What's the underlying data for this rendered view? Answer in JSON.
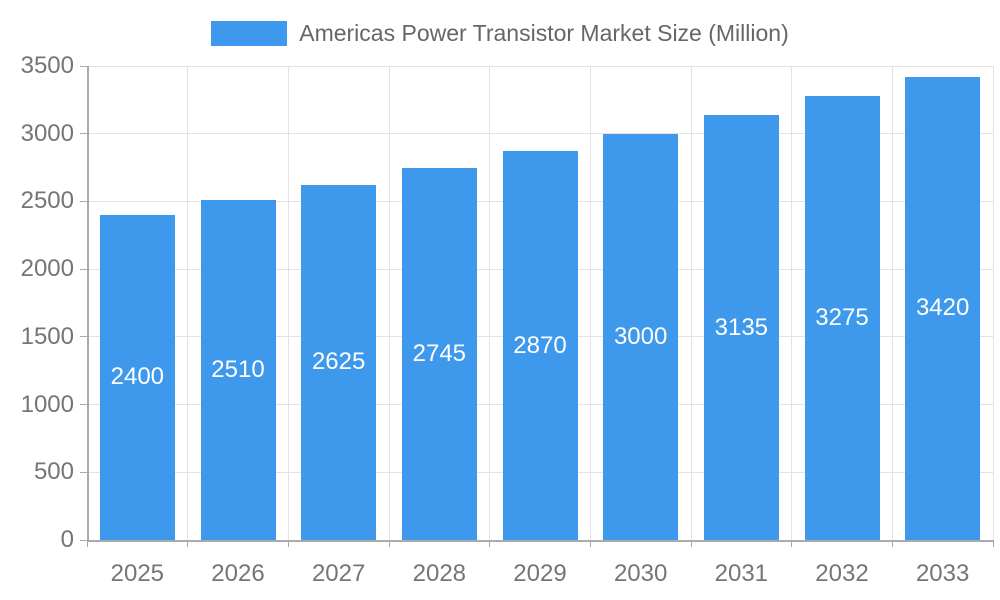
{
  "chart_data": {
    "type": "bar",
    "title": "Americas Power Transistor Market Size (Million)",
    "categories": [
      "2025",
      "2026",
      "2027",
      "2028",
      "2029",
      "2030",
      "2031",
      "2032",
      "2033"
    ],
    "values": [
      2400,
      2510,
      2625,
      2745,
      2870,
      3000,
      3135,
      3275,
      3420
    ],
    "series": [
      {
        "name": "Americas Power Transistor Market Size (Million)",
        "values": [
          2400,
          2510,
          2625,
          2745,
          2870,
          3000,
          3135,
          3275,
          3420
        ]
      }
    ],
    "xlabel": "",
    "ylabel": "",
    "ylim": [
      0,
      3500
    ],
    "ytick_step": 500,
    "ytick_labels": [
      "0",
      "500",
      "1000",
      "1500",
      "2000",
      "2500",
      "3000",
      "3500"
    ],
    "grid": true,
    "legend_position": "top",
    "bar_value_labels_inside": true
  },
  "legend": {
    "label": "Americas Power Transistor Market Size (Million)"
  },
  "colors": {
    "bar": "#3E99ED",
    "bar_label_text": "#ffffff",
    "grid_line": "#e3e3e3",
    "axis_line": "#aaaaaa",
    "axis_text": "#757575",
    "legend_text": "#666666",
    "background": "#ffffff"
  }
}
